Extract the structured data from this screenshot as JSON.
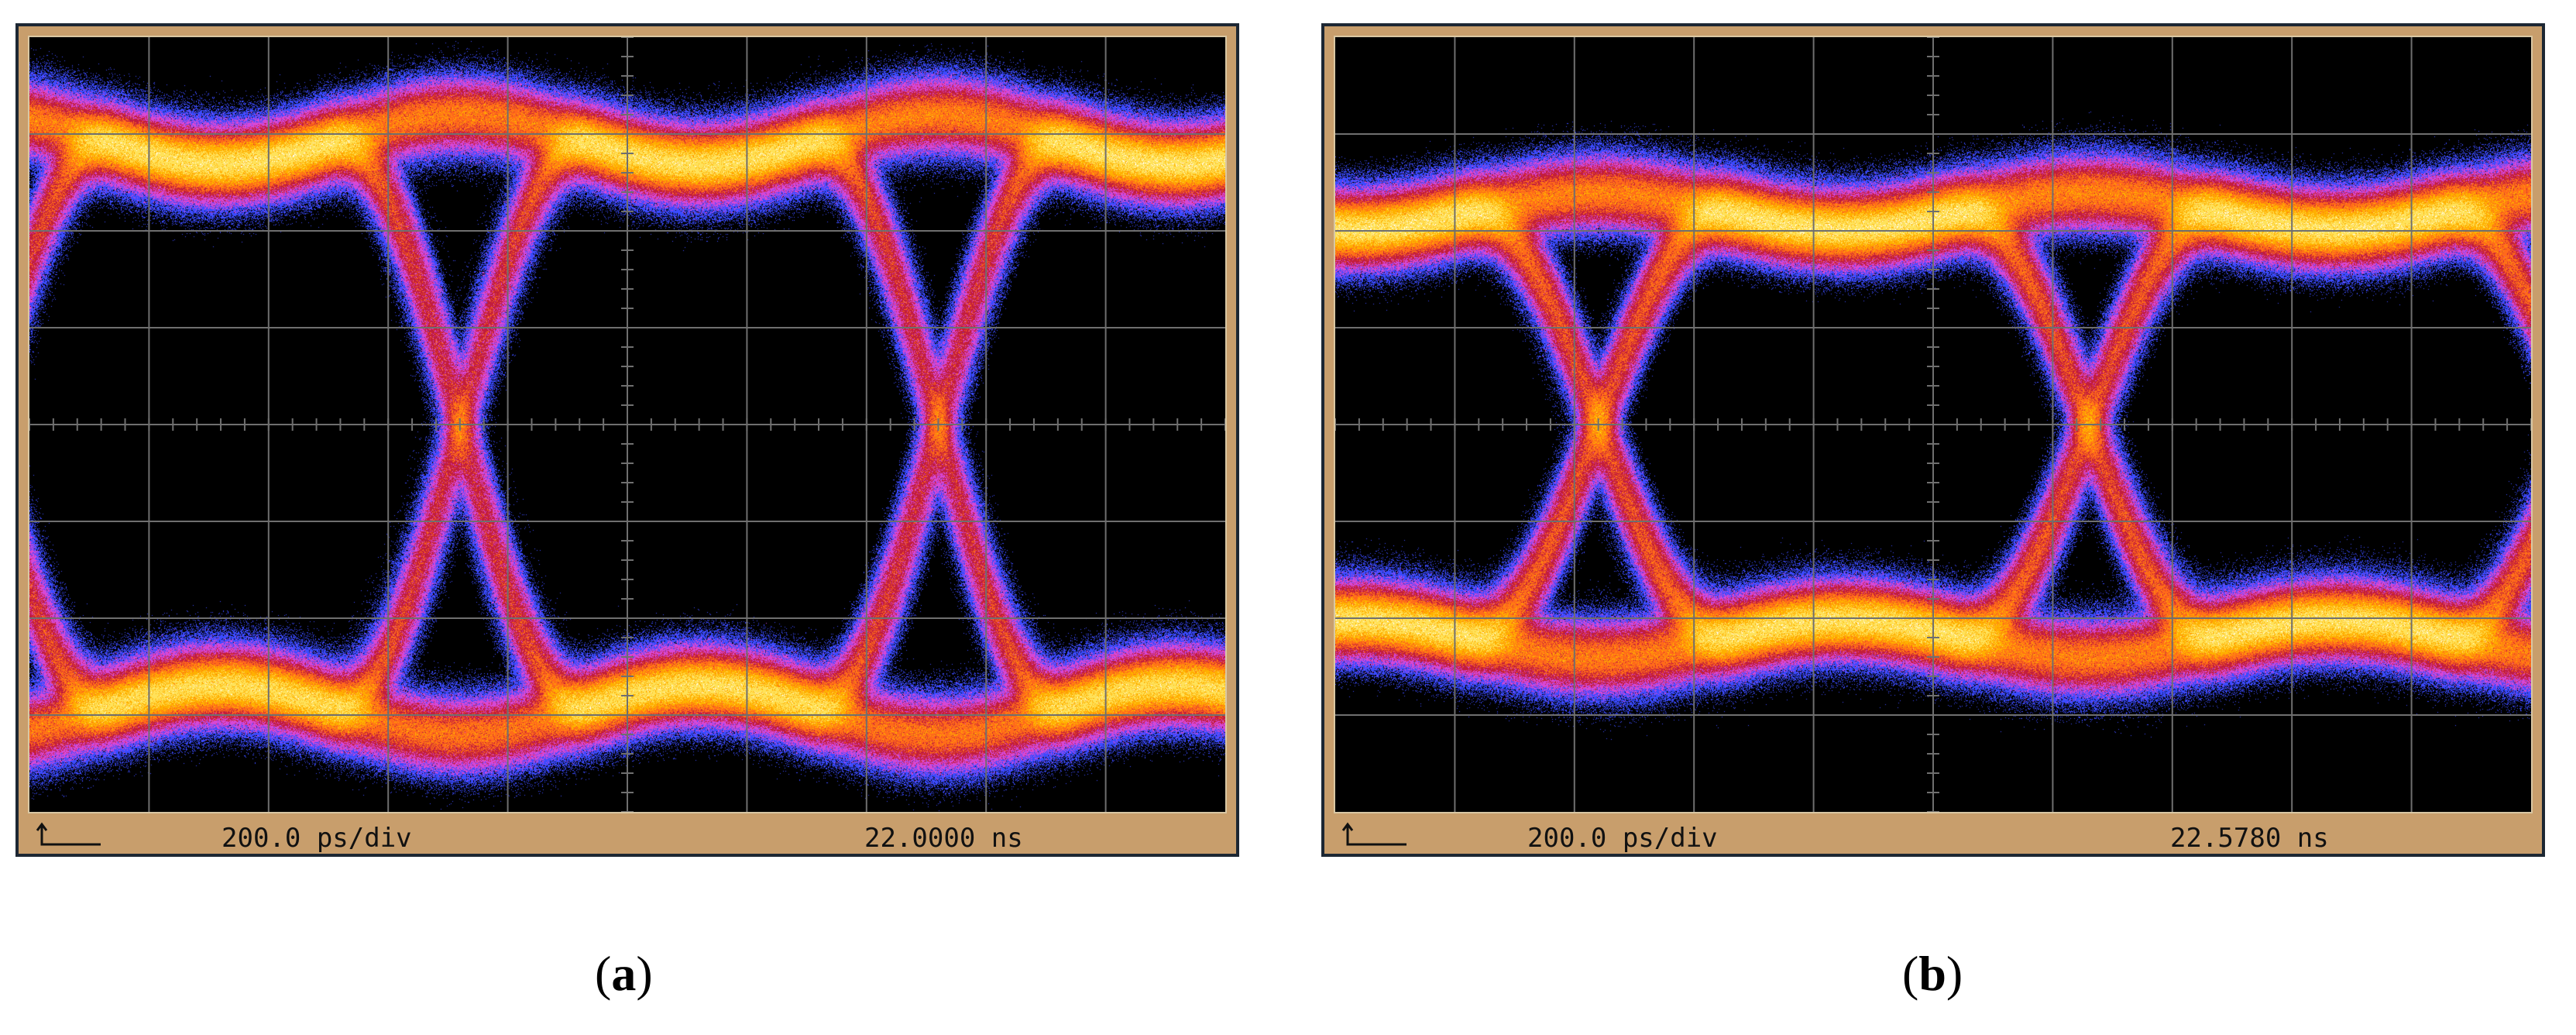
{
  "panels": [
    {
      "id": "a",
      "caption_open": "(",
      "caption_letter": "a",
      "caption_close": ")",
      "timebase_label": "200.0 ps/div",
      "delay_label": "22.0000 ns",
      "crossings_at_divisions": [
        3.6,
        7.6
      ],
      "eye_opening_fraction": 0.62
    },
    {
      "id": "b",
      "caption_open": "(",
      "caption_letter": "b",
      "caption_close": ")",
      "timebase_label": "200.0 ps/div",
      "delay_label": "22.5780 ns",
      "crossings_at_divisions": [
        2.2,
        6.3
      ],
      "eye_opening_fraction": 0.42
    }
  ],
  "display": {
    "horizontal_divisions": 10,
    "vertical_divisions": 8,
    "persistence_colors": [
      "#2ecc40",
      "#3b4bff",
      "#d648d6",
      "#c21d3c",
      "#ff6a1a",
      "#ffb000",
      "#ffe25a",
      "#ffffff"
    ],
    "frame_color": "#c89e6c",
    "screen_color": "#000000",
    "grid_color": "#6f6f6f"
  }
}
